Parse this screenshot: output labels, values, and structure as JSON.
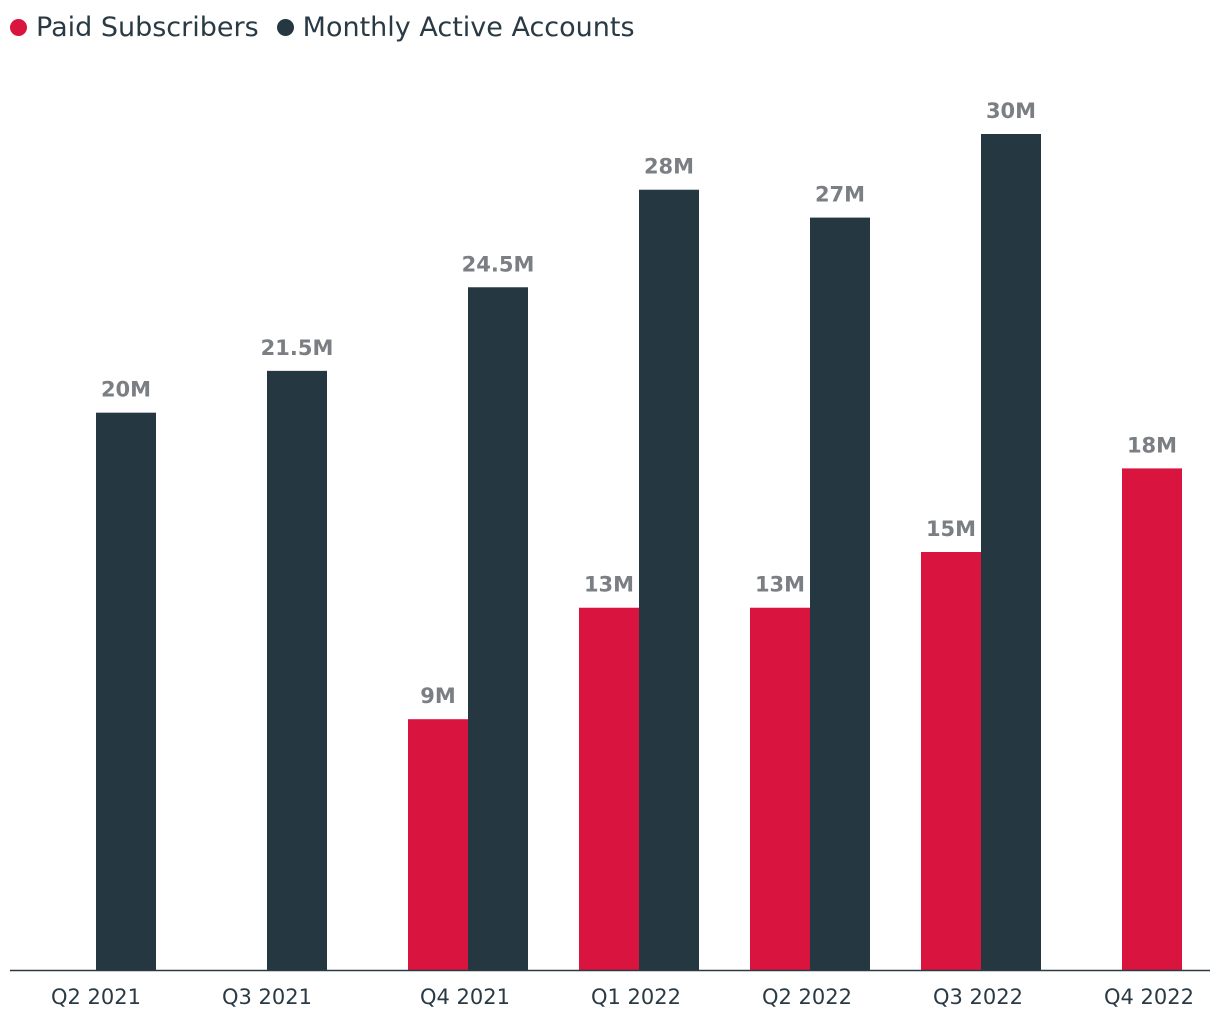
{
  "legend": {
    "paid_label": "Paid Subscribers",
    "mau_label": "Monthly Active Accounts"
  },
  "colors": {
    "paid": "#d8143f",
    "mau": "#253741",
    "axis": "#2a3a45",
    "label": "#7b7f83"
  },
  "chart_data": {
    "type": "bar",
    "categories": [
      "Q2 2021",
      "Q3 2021",
      "Q4 2021",
      "Q1 2022",
      "Q2 2022",
      "Q3 2022",
      "Q4 2022"
    ],
    "series": [
      {
        "name": "Paid Subscribers",
        "values": [
          null,
          null,
          9,
          13,
          13,
          15,
          18
        ],
        "labels": [
          "",
          "",
          "9M",
          "13M",
          "13M",
          "15M",
          "18M"
        ]
      },
      {
        "name": "Monthly Active Accounts",
        "values": [
          20,
          21.5,
          24.5,
          28,
          27,
          30,
          null
        ],
        "labels": [
          "20M",
          "21.5M",
          "24.5M",
          "28M",
          "27M",
          "30M",
          ""
        ]
      }
    ],
    "ylim": [
      0,
      30
    ],
    "grid": false,
    "legend_position": "top-left",
    "title": "",
    "xlabel": "",
    "ylabel": ""
  }
}
